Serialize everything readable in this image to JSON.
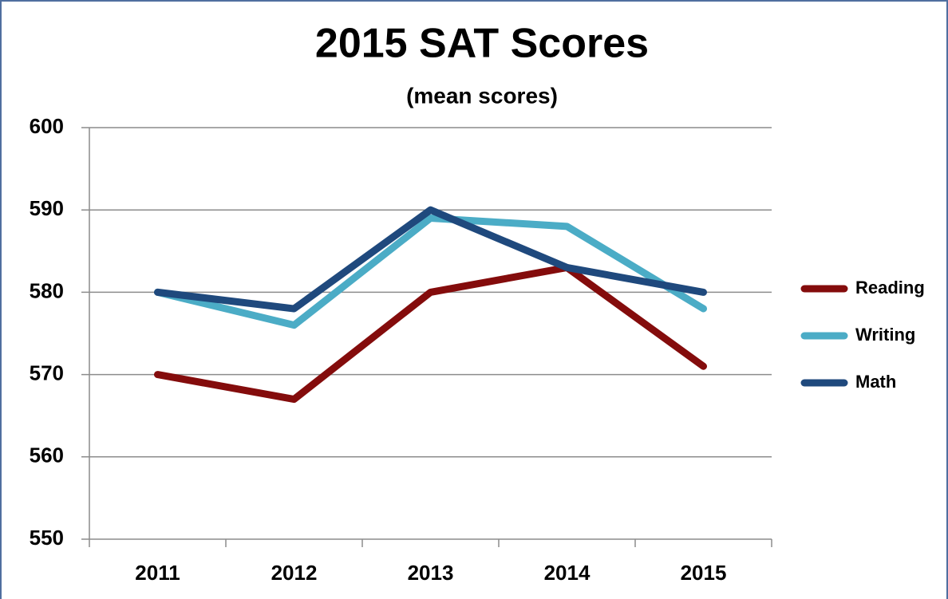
{
  "chart_data": {
    "type": "line",
    "title": "2015 SAT Scores",
    "subtitle": "(mean scores)",
    "categories": [
      "2011",
      "2012",
      "2013",
      "2014",
      "2015"
    ],
    "series": [
      {
        "name": "Reading",
        "color": "#840c0c",
        "values": [
          570,
          567,
          580,
          583,
          571
        ]
      },
      {
        "name": "Writing",
        "color": "#4bacc6",
        "values": [
          580,
          576,
          589,
          588,
          578
        ]
      },
      {
        "name": "Math",
        "color": "#1f497d",
        "values": [
          580,
          578,
          590,
          583,
          580
        ]
      }
    ],
    "ylim": [
      550,
      600
    ],
    "yticks": [
      550,
      560,
      570,
      580,
      590,
      600
    ],
    "grid": true,
    "legend": "right"
  }
}
